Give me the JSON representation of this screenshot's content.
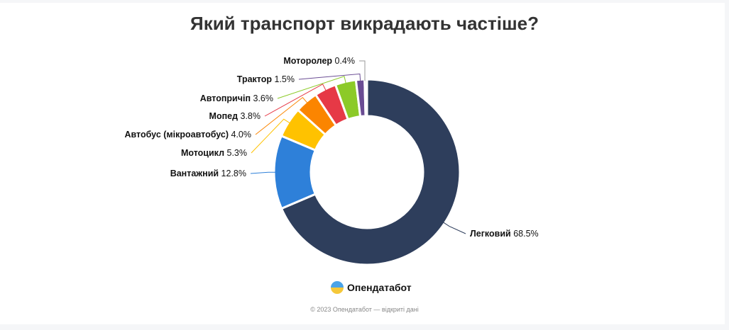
{
  "chart_data": {
    "type": "pie",
    "variant": "donut",
    "title": "Який транспорт викрадають частіше?",
    "slices": [
      {
        "label": "Легковий",
        "value": 68.5,
        "display": "68.5%",
        "color": "#2e3e5c"
      },
      {
        "label": "Вантажний",
        "value": 12.8,
        "display": "12.8%",
        "color": "#2e80d9"
      },
      {
        "label": "Мотоцикл",
        "value": 5.3,
        "display": "5.3%",
        "color": "#ffc200"
      },
      {
        "label": "Автобус (мікроавтобус)",
        "value": 4.0,
        "display": "4.0%",
        "color": "#fb8500"
      },
      {
        "label": "Мопед",
        "value": 3.8,
        "display": "3.8%",
        "color": "#e63946"
      },
      {
        "label": "Автопричіп",
        "value": 3.6,
        "display": "3.6%",
        "color": "#8cca28"
      },
      {
        "label": "Трактор",
        "value": 1.5,
        "display": "1.5%",
        "color": "#6a4c93"
      },
      {
        "label": "Моторолер",
        "value": 0.4,
        "display": "0.4%",
        "color": "#9a9a9a"
      }
    ],
    "legend": "none"
  },
  "brand": "Опендатабот",
  "footer": "© 2023 Опендатабот — відкриті дані"
}
